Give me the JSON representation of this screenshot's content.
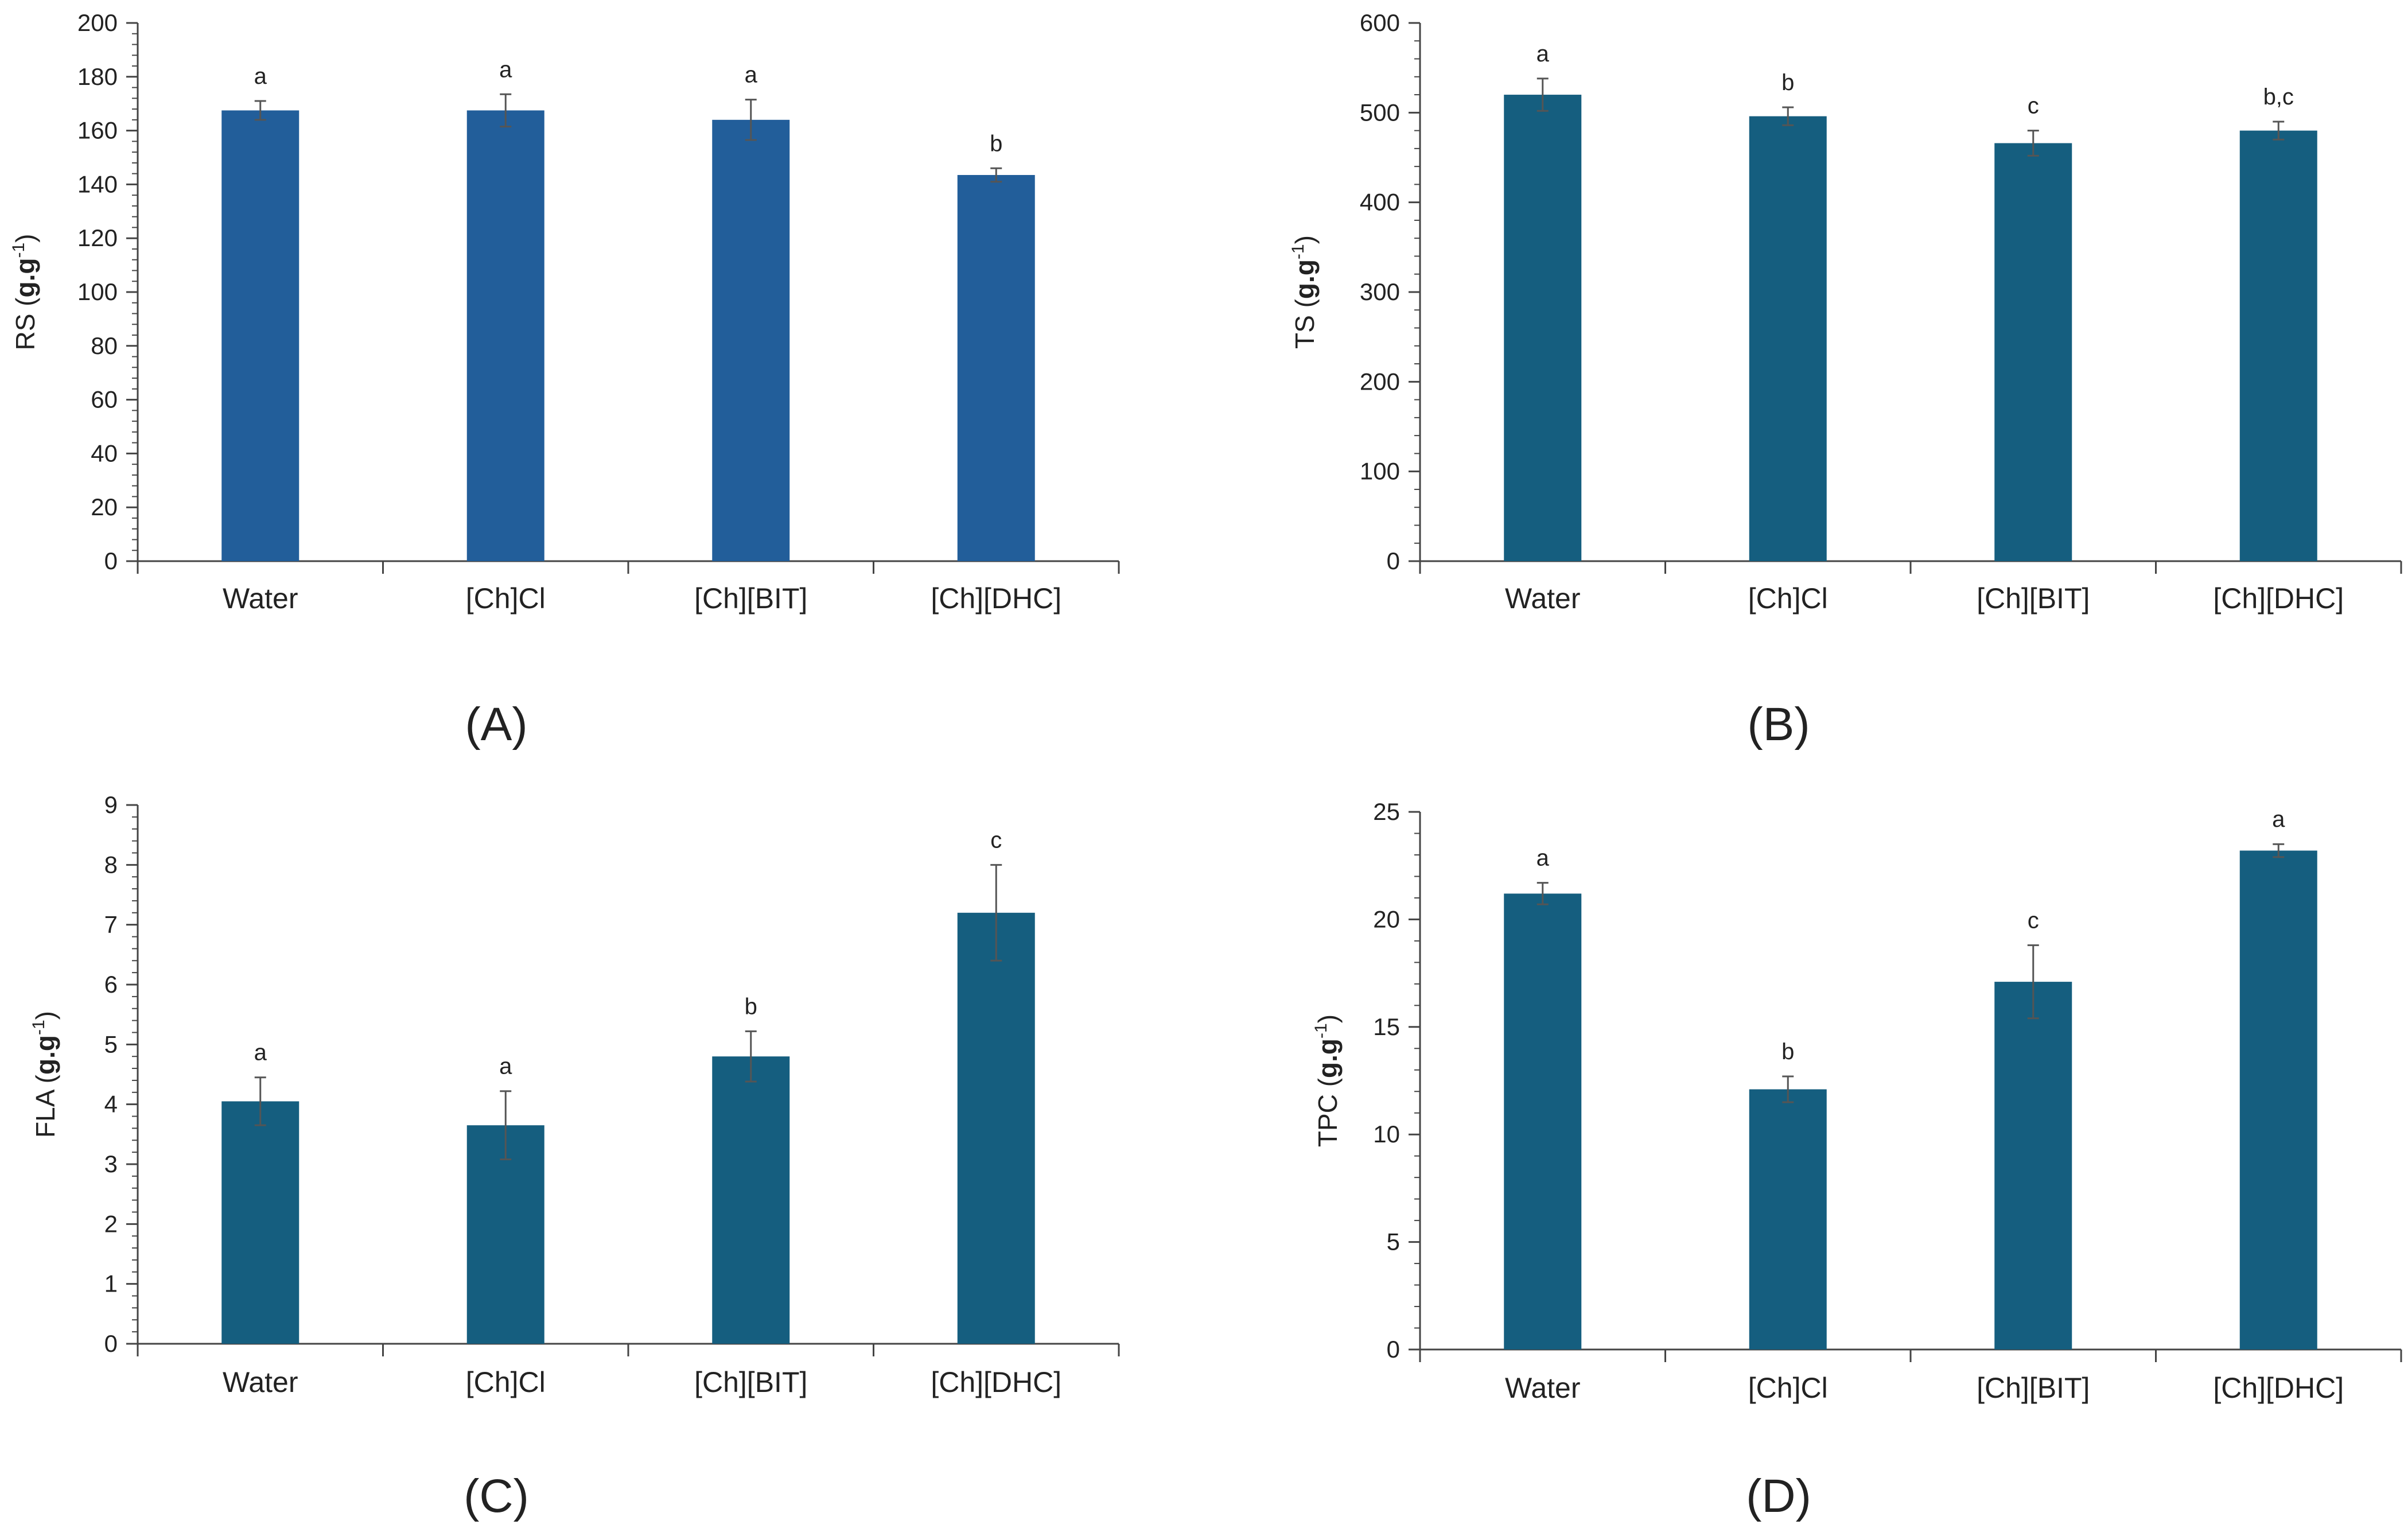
{
  "chart_data": [
    {
      "panel_label": "(A)",
      "type": "bar",
      "ylabel_main": "RS",
      "ylabel_unit": "g.g",
      "ylabel_sup": "-1",
      "categories": [
        "Water",
        "[Ch]Cl",
        "[Ch][BIT]",
        "[Ch][DHC]"
      ],
      "values": [
        167.5,
        167.5,
        164,
        143.5
      ],
      "errors": [
        3.5,
        6,
        7.5,
        2.5
      ],
      "letters": [
        "a",
        "a",
        "a",
        "b"
      ],
      "yticks": [
        0,
        20,
        40,
        60,
        80,
        100,
        120,
        140,
        160,
        180,
        200
      ],
      "ylim": [
        0,
        200
      ],
      "bar_color": "#225e9a"
    },
    {
      "panel_label": "(B)",
      "type": "bar",
      "ylabel_main": "TS",
      "ylabel_unit": "g.g",
      "ylabel_sup": "-1",
      "categories": [
        "Water",
        "[Ch]Cl",
        "[Ch][BIT]",
        "[Ch][DHC]"
      ],
      "values": [
        520,
        496,
        466,
        480
      ],
      "errors": [
        18,
        10,
        14,
        10
      ],
      "letters": [
        "a",
        "b",
        "c",
        "b,c"
      ],
      "yticks": [
        0,
        100,
        200,
        300,
        400,
        500,
        600
      ],
      "ylim": [
        0,
        600
      ],
      "bar_color": "#155e7f"
    },
    {
      "panel_label": "(C)",
      "type": "bar",
      "ylabel_main": "FLA",
      "ylabel_unit": "g.g",
      "ylabel_sup": "-1",
      "categories": [
        "Water",
        "[Ch]Cl",
        "[Ch][BIT]",
        "[Ch][DHC]"
      ],
      "values": [
        4.05,
        3.65,
        4.8,
        7.2
      ],
      "errors": [
        0.4,
        0.57,
        0.42,
        0.8
      ],
      "letters": [
        "a",
        "a",
        "b",
        "c"
      ],
      "yticks": [
        0,
        1,
        2,
        3,
        4,
        5,
        6,
        7,
        8,
        9
      ],
      "ylim": [
        0,
        9
      ],
      "bar_color": "#155e7f"
    },
    {
      "panel_label": "(D)",
      "type": "bar",
      "ylabel_main": "TPC",
      "ylabel_unit": "g.g",
      "ylabel_sup": "-1",
      "categories": [
        "Water",
        "[Ch]Cl",
        "[Ch][BIT]",
        "[Ch][DHC]"
      ],
      "values": [
        21.2,
        12.1,
        17.1,
        23.2
      ],
      "errors": [
        0.5,
        0.6,
        1.7,
        0.3
      ],
      "letters": [
        "a",
        "b",
        "c",
        "a"
      ],
      "yticks": [
        0,
        5,
        10,
        15,
        20,
        25
      ],
      "ylim": [
        0,
        25
      ],
      "bar_color": "#155e7f"
    }
  ]
}
